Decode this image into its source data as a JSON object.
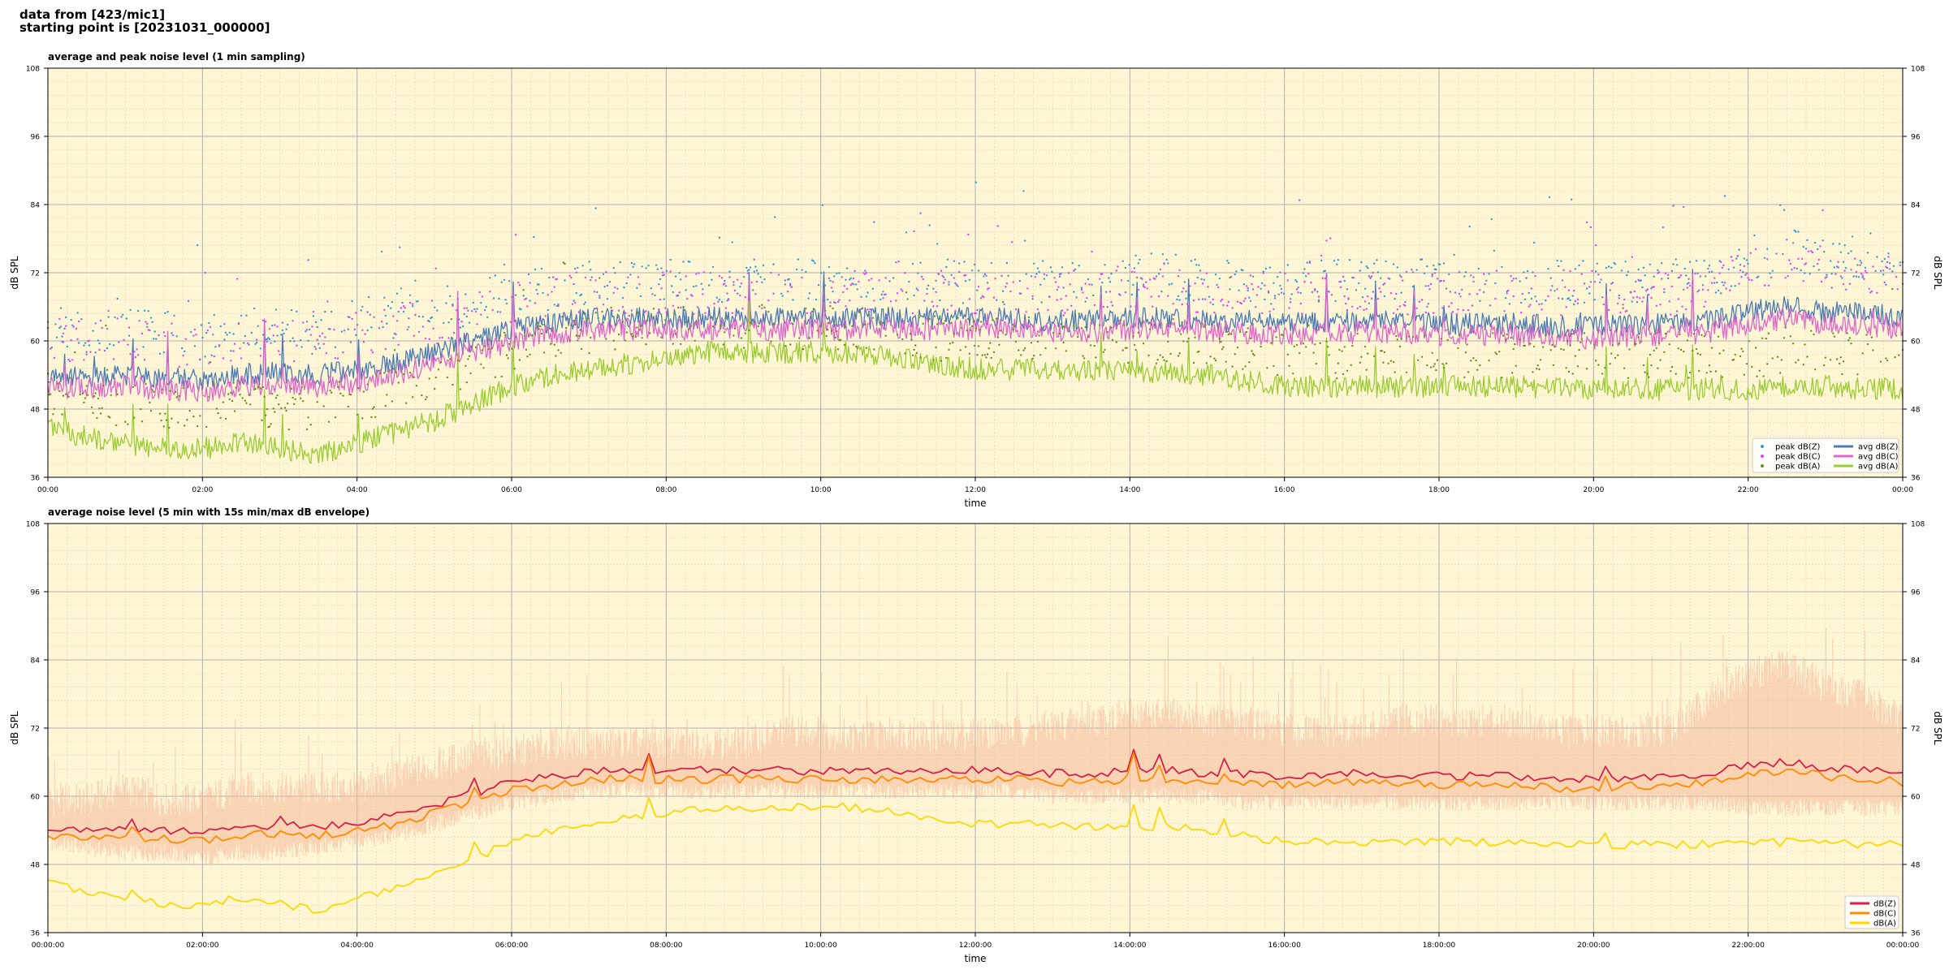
{
  "header": {
    "line1": "data from [423/mic1]",
    "line2": "starting point is [20231031_000000]"
  },
  "chart_data": [
    {
      "type": "line",
      "title": "average and peak noise level (1 min sampling)",
      "xlabel": "time",
      "ylabel": "dB SPL",
      "ylim": [
        36,
        108
      ],
      "yticks": [
        36,
        48,
        60,
        72,
        84,
        96,
        108
      ],
      "x_tick_labels": [
        "00:00",
        "02:00",
        "04:00",
        "06:00",
        "08:00",
        "10:00",
        "12:00",
        "14:00",
        "16:00",
        "18:00",
        "20:00",
        "22:00",
        "00:00"
      ],
      "grid": true,
      "legend_position": "bottom-right",
      "x_hours": [
        0,
        0.5,
        1,
        1.5,
        2,
        2.5,
        3,
        3.5,
        4,
        4.5,
        5,
        5.5,
        6,
        6.5,
        7,
        7.5,
        8,
        8.5,
        9,
        9.5,
        10,
        10.5,
        11,
        11.5,
        12,
        12.5,
        13,
        13.5,
        14,
        14.5,
        15,
        15.5,
        16,
        16.5,
        17,
        17.5,
        18,
        18.5,
        19,
        19.5,
        20,
        20.5,
        21,
        21.5,
        22,
        22.5,
        23,
        23.5,
        24
      ],
      "series": [
        {
          "name": "avg dB(Z)",
          "kind": "line",
          "color": "#4a7bb5",
          "values": [
            54,
            53.5,
            54,
            53.5,
            53,
            54,
            54.5,
            54,
            55,
            56,
            58,
            60,
            62,
            63,
            64,
            64,
            64,
            64,
            64,
            64,
            64,
            64,
            64,
            64,
            64,
            64,
            63.5,
            63.5,
            64,
            64,
            63.5,
            63.5,
            63,
            63.5,
            63.5,
            63.5,
            63,
            63,
            63,
            62.5,
            62.5,
            63,
            63,
            63.5,
            65,
            66,
            65,
            65,
            64
          ]
        },
        {
          "name": "avg dB(C)",
          "kind": "line",
          "color": "#e066cc",
          "values": [
            52,
            51.5,
            52,
            51.5,
            51,
            52,
            52.5,
            52,
            53,
            54,
            56,
            58,
            60,
            61,
            62,
            62,
            62,
            62,
            62,
            62,
            62,
            62,
            62,
            62,
            62,
            62,
            61.5,
            61.5,
            62,
            62,
            61.5,
            61.5,
            61,
            61.5,
            61.5,
            61.5,
            61,
            61,
            61,
            60.5,
            60.5,
            61,
            61,
            61.5,
            63,
            64,
            63,
            63,
            62
          ]
        },
        {
          "name": "avg dB(A)",
          "kind": "line",
          "color": "#9acd32",
          "values": [
            45,
            43,
            42,
            41,
            41,
            42,
            41,
            40,
            42,
            44,
            46,
            49,
            52,
            54,
            55,
            56,
            57,
            58,
            58,
            58,
            58,
            58,
            57,
            56,
            55,
            55,
            55,
            54.5,
            54.5,
            54.5,
            54,
            53,
            52,
            52,
            52,
            52,
            52,
            52,
            52,
            51.5,
            51.5,
            51.5,
            51.5,
            51.5,
            51.5,
            52,
            52,
            51.5,
            51.5
          ]
        },
        {
          "name": "peak dB(Z)",
          "kind": "scatter",
          "color": "#2e9bd6",
          "values": [
            62,
            61,
            62,
            61,
            60,
            62,
            62,
            61,
            63,
            64,
            65,
            66,
            68,
            69,
            70,
            70,
            70,
            70,
            70,
            70,
            70,
            70,
            70,
            70,
            70,
            70,
            70,
            70,
            71,
            71,
            70,
            70,
            70,
            70,
            70,
            70,
            70,
            70,
            70,
            70,
            70,
            70,
            70,
            71,
            74,
            76,
            74,
            74,
            72
          ]
        },
        {
          "name": "peak dB(C)",
          "kind": "scatter",
          "color": "#d946ef",
          "values": [
            60,
            59,
            60,
            59,
            58,
            60,
            60,
            59,
            61,
            62,
            63,
            64,
            66,
            67,
            68,
            68,
            68,
            68,
            68,
            68,
            68,
            68,
            68,
            68,
            68,
            68,
            68,
            68,
            69,
            69,
            68,
            68,
            68,
            68,
            68,
            68,
            68,
            68,
            68,
            68,
            68,
            68,
            68,
            69,
            72,
            74,
            72,
            72,
            70
          ]
        },
        {
          "name": "peak dB(A)",
          "kind": "scatter",
          "color": "#6b8e23",
          "values": [
            50,
            49,
            48,
            48,
            48,
            49,
            48,
            48,
            49,
            51,
            53,
            55,
            58,
            60,
            61,
            62,
            62,
            62,
            62,
            62,
            62,
            62,
            61,
            60,
            60,
            60,
            60,
            59.5,
            59.5,
            59.5,
            59,
            58,
            57,
            57,
            57,
            57,
            57,
            57,
            57,
            57,
            57,
            57,
            57,
            57,
            57,
            58,
            58,
            57,
            57
          ]
        }
      ]
    },
    {
      "type": "line",
      "title": "average noise level (5 min with 15s min/max dB envelope)",
      "xlabel": "time",
      "ylabel": "dB SPL",
      "ylim": [
        36,
        108
      ],
      "yticks": [
        36,
        48,
        60,
        72,
        84,
        96,
        108
      ],
      "x_tick_labels": [
        "00:00:00",
        "02:00:00",
        "04:00:00",
        "06:00:00",
        "08:00:00",
        "10:00:00",
        "12:00:00",
        "14:00:00",
        "16:00:00",
        "18:00:00",
        "20:00:00",
        "22:00:00",
        "00:00:00"
      ],
      "grid": true,
      "legend_position": "bottom-right",
      "x_hours": [
        0,
        0.5,
        1,
        1.5,
        2,
        2.5,
        3,
        3.5,
        4,
        4.5,
        5,
        5.5,
        6,
        6.5,
        7,
        7.5,
        8,
        8.5,
        9,
        9.5,
        10,
        10.5,
        11,
        11.5,
        12,
        12.5,
        13,
        13.5,
        14,
        14.5,
        15,
        15.5,
        16,
        16.5,
        17,
        17.5,
        18,
        18.5,
        19,
        19.5,
        20,
        20.5,
        21,
        21.5,
        22,
        22.5,
        23,
        23.5,
        24
      ],
      "envelope": {
        "color": "#f4b89a",
        "max": [
          60,
          60,
          62,
          60,
          60,
          62,
          62,
          62,
          62,
          64,
          66,
          68,
          68,
          70,
          70,
          70,
          70,
          70,
          70,
          72,
          72,
          71,
          72,
          71,
          72,
          72,
          73,
          74,
          75,
          75,
          74,
          74,
          72,
          72,
          72,
          74,
          74,
          74,
          74,
          72,
          72,
          72,
          72,
          78,
          82,
          84,
          80,
          78,
          74
        ],
        "min": [
          52,
          51,
          50,
          50,
          49,
          50,
          50,
          51,
          52,
          53,
          55,
          57,
          59,
          60,
          61,
          61,
          61,
          61,
          61,
          61,
          61,
          61,
          61,
          61,
          61,
          61,
          60,
          60,
          60,
          60,
          60,
          59,
          59,
          59,
          59,
          59,
          59,
          59,
          59,
          59,
          59,
          59,
          59,
          59,
          58,
          58,
          58,
          58,
          58
        ]
      },
      "series": [
        {
          "name": "dB(Z)",
          "color": "#d6204a",
          "values": [
            54.5,
            54,
            54.5,
            54,
            53.5,
            54.5,
            55,
            54.5,
            55.5,
            56.5,
            58.5,
            60.5,
            62.5,
            63.5,
            64.5,
            64.5,
            64.5,
            64.5,
            64.5,
            64.5,
            64.5,
            64.5,
            64.5,
            64.5,
            64.5,
            64.5,
            64,
            64,
            64.5,
            64.5,
            64,
            64,
            63.5,
            64,
            64,
            64,
            63.5,
            63.5,
            63.5,
            63,
            63,
            63.5,
            63.5,
            64,
            65.5,
            66,
            65,
            64.5,
            64
          ]
        },
        {
          "name": "dB(C)",
          "color": "#ff8c00",
          "values": [
            53,
            52.5,
            53,
            52.5,
            52,
            53,
            53.5,
            53,
            54,
            55,
            57,
            59,
            61,
            62,
            63,
            63,
            63,
            63,
            63,
            63,
            63,
            63,
            63,
            63,
            63,
            63,
            62.5,
            62.5,
            63,
            63,
            62.5,
            62.5,
            62,
            62.5,
            62.5,
            62.5,
            62,
            62,
            62,
            61.5,
            61.5,
            62,
            62,
            62.5,
            64,
            64.5,
            63.5,
            63,
            62.5
          ]
        },
        {
          "name": "dB(A)",
          "color": "#ffd700",
          "values": [
            45,
            43,
            42,
            41,
            41,
            42,
            41,
            40,
            42,
            44,
            46,
            49,
            52,
            54,
            55,
            56,
            57,
            58,
            58,
            58,
            58,
            58,
            57,
            56,
            55,
            55,
            55,
            54.5,
            54.5,
            54.5,
            54,
            53,
            52,
            52,
            52,
            52,
            52,
            52,
            52,
            51.5,
            51.5,
            51.5,
            51.5,
            51.5,
            51.5,
            52,
            52,
            51.5,
            51.5
          ]
        }
      ]
    }
  ]
}
